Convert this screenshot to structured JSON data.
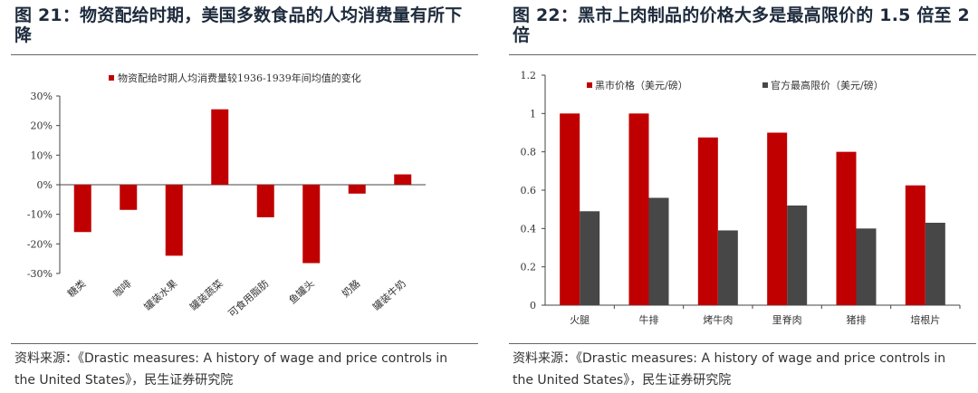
{
  "left": {
    "title": "图 21：物资配给时期，美国多数食品的人均消费量有所下降",
    "source": "资料来源：《Drastic measures: A history of wage and price controls in the United States》，民生证券研究院"
  },
  "right": {
    "title": "图 22：黑市上肉制品的价格大多是最高限价的 1.5 倍至 2 倍",
    "source": "资料来源：《Drastic measures: A history of wage and price controls in the United States》，民生证券研究院"
  },
  "chart_data": [
    {
      "type": "bar",
      "categories": [
        "糖类",
        "咖啡",
        "罐装水果",
        "罐装蔬菜",
        "可食用脂肪",
        "鱼罐头",
        "奶酪",
        "罐装牛奶"
      ],
      "series": [
        {
          "name": "物资配给时期人均消费量较1936-1939年间均值的变化",
          "values": [
            -16,
            -8.5,
            -24,
            25.5,
            -11,
            -26.5,
            -3,
            3.5
          ],
          "color": "#c00000"
        }
      ],
      "ylim": [
        -30,
        30
      ],
      "yticks": [
        "-30%",
        "-20%",
        "-10%",
        "0%",
        "10%",
        "20%",
        "30%"
      ],
      "ytick_values": [
        -30,
        -20,
        -10,
        0,
        10,
        20,
        30
      ],
      "legend": "top",
      "grid": false
    },
    {
      "type": "bar",
      "categories": [
        "火腿",
        "牛排",
        "烤牛肉",
        "里脊肉",
        "猪排",
        "培根片"
      ],
      "series": [
        {
          "name": "黑市价格（美元/磅）",
          "values": [
            1.0,
            1.0,
            0.875,
            0.9,
            0.8,
            0.625
          ],
          "color": "#c00000"
        },
        {
          "name": "官方最高限价（美元/磅）",
          "values": [
            0.49,
            0.56,
            0.39,
            0.52,
            0.4,
            0.43
          ],
          "color": "#474747"
        }
      ],
      "ylim": [
        0,
        1.2
      ],
      "yticks": [
        "0",
        "0.2",
        "0.4",
        "0.6",
        "0.8",
        "1",
        "1.2"
      ],
      "ytick_values": [
        0,
        0.2,
        0.4,
        0.6,
        0.8,
        1.0,
        1.2
      ],
      "legend": "top",
      "grid": false
    }
  ]
}
